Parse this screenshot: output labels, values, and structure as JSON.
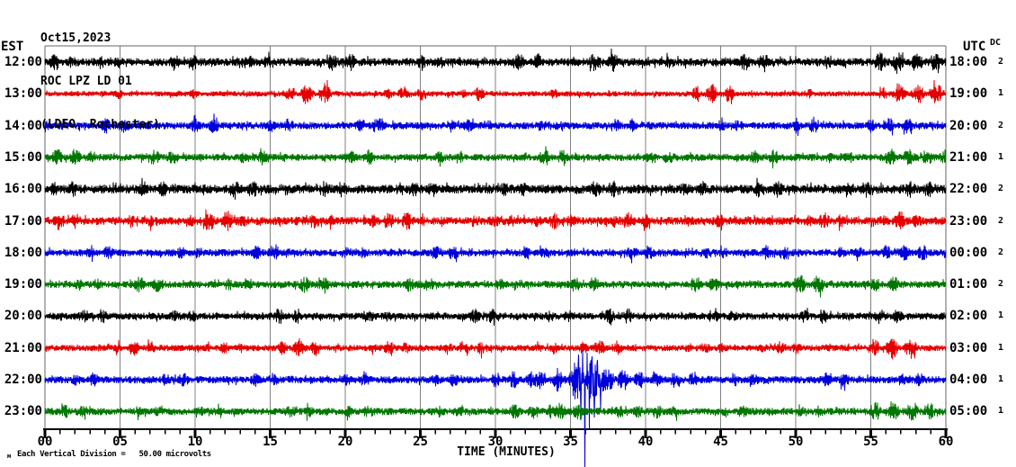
{
  "header": {
    "line1": "Oct15,2023",
    "line2": "ROC LPZ LD 01",
    "line3": "(LDEO, Rochester)"
  },
  "axes": {
    "left_tz": "EST",
    "right_tz": "UTC",
    "dc_header": "DC",
    "x_label": "TIME (MINUTES)",
    "x_ticks": [
      "00",
      "05",
      "10",
      "15",
      "20",
      "25",
      "30",
      "35",
      "40",
      "45",
      "50",
      "55",
      "60"
    ],
    "minutes_per_major_tick": 5,
    "minutes_per_minor_tick": 1
  },
  "footer": {
    "watermark": "м",
    "scale_note": "Each Vertical Division =   50.00 microvolts"
  },
  "colors": {
    "black": "#000000",
    "red": "#e60000",
    "blue": "#0000dd",
    "green": "#007700",
    "grid": "#808080",
    "frame": "#666666",
    "axis": "#000000"
  },
  "chart_data": {
    "type": "line",
    "title": "ROC LPZ LD 01 (LDEO, Rochester) helicorder, Oct15,2023",
    "xlabel": "TIME (MINUTES)",
    "x_range_minutes": [
      0,
      60
    ],
    "grid": true,
    "vertical_scale": "50.00 microvolts per division",
    "event_note": "Large-amplitude seismic event on 22:00 EST / 04:00 UTC trace near minute 36; spike extends below plot",
    "rows": [
      {
        "est": "12:00",
        "utc": "18:00",
        "dc": "2",
        "color": "black",
        "seed": 11,
        "base_amp": 4.5,
        "bursts": [
          [
            0,
            1.5,
            10
          ],
          [
            3,
            5,
            8
          ],
          [
            8,
            10,
            10
          ],
          [
            13,
            15,
            8
          ],
          [
            18.5,
            21,
            10
          ],
          [
            24.5,
            26.5,
            8
          ],
          [
            31,
            33,
            10
          ],
          [
            36,
            38.5,
            11
          ],
          [
            41,
            42.5,
            8
          ],
          [
            46,
            48,
            10
          ],
          [
            51.5,
            53,
            8
          ],
          [
            55,
            59.5,
            11
          ]
        ]
      },
      {
        "est": "13:00",
        "utc": "19:00",
        "dc": "1",
        "color": "red",
        "seed": 22,
        "base_amp": 3,
        "bursts": [
          [
            4,
            5,
            6
          ],
          [
            9,
            10,
            6
          ],
          [
            16.5,
            19,
            12
          ],
          [
            23,
            25,
            9
          ],
          [
            28,
            29.5,
            8
          ],
          [
            33,
            34,
            6
          ],
          [
            43.5,
            45.5,
            11
          ],
          [
            50,
            51,
            6
          ],
          [
            56,
            60,
            12
          ]
        ]
      },
      {
        "est": "14:00",
        "utc": "20:00",
        "dc": "2",
        "color": "blue",
        "seed": 33,
        "base_amp": 4,
        "bursts": [
          [
            0,
            1,
            7
          ],
          [
            4,
            6,
            9
          ],
          [
            10,
            12,
            9
          ],
          [
            15,
            17,
            8
          ],
          [
            21,
            23,
            9
          ],
          [
            27,
            29,
            8
          ],
          [
            33,
            35,
            7
          ],
          [
            38,
            40,
            9
          ],
          [
            45,
            47,
            7
          ],
          [
            50,
            52,
            9
          ],
          [
            55,
            58,
            9
          ]
        ]
      },
      {
        "est": "15:00",
        "utc": "21:00",
        "dc": "1",
        "color": "green",
        "seed": 44,
        "base_amp": 4,
        "bursts": [
          [
            0.5,
            3,
            10
          ],
          [
            7,
            9,
            9
          ],
          [
            13,
            15,
            8
          ],
          [
            20,
            22,
            9
          ],
          [
            26,
            28,
            7
          ],
          [
            33,
            35,
            10
          ],
          [
            40,
            42,
            8
          ],
          [
            47,
            49,
            9
          ],
          [
            52,
            54,
            7
          ],
          [
            56,
            60,
            10
          ]
        ]
      },
      {
        "est": "16:00",
        "utc": "22:00",
        "dc": "2",
        "color": "black",
        "seed": 55,
        "base_amp": 5,
        "bursts": [
          [
            0,
            2,
            9
          ],
          [
            6,
            8,
            9
          ],
          [
            12,
            14,
            10
          ],
          [
            18,
            20,
            10
          ],
          [
            24,
            26,
            9
          ],
          [
            30,
            32,
            8
          ],
          [
            36,
            38,
            10
          ],
          [
            42,
            44,
            8
          ],
          [
            47,
            49,
            10
          ],
          [
            53,
            55,
            8
          ],
          [
            57,
            59,
            10
          ]
        ]
      },
      {
        "est": "17:00",
        "utc": "23:00",
        "dc": "2",
        "color": "red",
        "seed": 66,
        "base_amp": 4.5,
        "bursts": [
          [
            0,
            2,
            11
          ],
          [
            5,
            7,
            8
          ],
          [
            10,
            13,
            12
          ],
          [
            17,
            19,
            9
          ],
          [
            22,
            25,
            11
          ],
          [
            29,
            31,
            8
          ],
          [
            33,
            35,
            10
          ],
          [
            38,
            40,
            10
          ],
          [
            44,
            46,
            8
          ],
          [
            51,
            53,
            10
          ],
          [
            56,
            58,
            11
          ]
        ]
      },
      {
        "est": "18:00",
        "utc": "00:00",
        "dc": "2",
        "color": "blue",
        "seed": 77,
        "base_amp": 4,
        "bursts": [
          [
            3,
            5,
            8
          ],
          [
            9,
            11,
            7
          ],
          [
            14,
            16,
            9
          ],
          [
            20,
            22,
            7
          ],
          [
            26,
            28,
            9
          ],
          [
            32,
            34,
            7
          ],
          [
            39,
            41,
            9
          ],
          [
            44,
            46,
            7
          ],
          [
            48,
            50,
            9
          ],
          [
            53,
            55,
            7
          ],
          [
            56,
            59,
            9
          ]
        ]
      },
      {
        "est": "19:00",
        "utc": "01:00",
        "dc": "2",
        "color": "green",
        "seed": 88,
        "base_amp": 4,
        "bursts": [
          [
            2,
            4,
            7
          ],
          [
            6,
            8,
            9
          ],
          [
            12,
            14,
            7
          ],
          [
            17,
            19,
            10
          ],
          [
            24,
            26,
            9
          ],
          [
            30,
            32,
            7
          ],
          [
            35,
            37,
            9
          ],
          [
            43,
            45,
            9
          ],
          [
            50,
            52,
            11
          ],
          [
            55,
            57,
            9
          ]
        ]
      },
      {
        "est": "20:00",
        "utc": "02:00",
        "dc": "1",
        "color": "black",
        "seed": 99,
        "base_amp": 4,
        "bursts": [
          [
            2,
            4,
            8
          ],
          [
            8,
            10,
            7
          ],
          [
            15,
            17,
            9
          ],
          [
            21,
            23,
            7
          ],
          [
            28,
            30,
            9
          ],
          [
            33,
            35,
            7
          ],
          [
            37,
            39,
            9
          ],
          [
            44,
            46,
            7
          ],
          [
            50,
            52,
            9
          ],
          [
            55,
            57,
            9
          ]
        ]
      },
      {
        "est": "21:00",
        "utc": "03:00",
        "dc": "1",
        "color": "red",
        "seed": 110,
        "base_amp": 3.5,
        "bursts": [
          [
            5,
            7,
            9
          ],
          [
            11,
            13,
            7
          ],
          [
            16,
            18,
            11
          ],
          [
            22,
            24,
            8
          ],
          [
            27,
            29,
            9
          ],
          [
            33,
            34,
            7
          ],
          [
            36,
            38,
            10
          ],
          [
            43,
            45,
            7
          ],
          [
            48,
            50,
            8
          ],
          [
            55.5,
            58,
            13
          ]
        ]
      },
      {
        "est": "22:00",
        "utc": "04:00",
        "dc": "1",
        "color": "blue",
        "seed": 121,
        "base_amp": 4,
        "bursts": [
          [
            2,
            4,
            8
          ],
          [
            8,
            10,
            8
          ],
          [
            14,
            16,
            8
          ],
          [
            20,
            22,
            7
          ],
          [
            26,
            28,
            8
          ],
          [
            30,
            33,
            10
          ],
          [
            33,
            35.3,
            14
          ],
          [
            35.3,
            37.3,
            26
          ],
          [
            37.3,
            39.5,
            13
          ],
          [
            39.5,
            44,
            9
          ],
          [
            46,
            48,
            8
          ],
          [
            52,
            54,
            9
          ],
          [
            57,
            59,
            8
          ]
        ],
        "spikes": [
          [
            35.55,
            -28
          ],
          [
            35.7,
            45
          ],
          [
            35.82,
            -32
          ],
          [
            35.95,
            103
          ],
          [
            36.1,
            -30
          ],
          [
            36.25,
            55
          ],
          [
            36.45,
            -26
          ],
          [
            36.6,
            42
          ],
          [
            36.8,
            -22
          ],
          [
            37.0,
            34
          ]
        ],
        "event": "Large local event ~35.5-37 min (04:35 UTC)"
      },
      {
        "est": "23:00",
        "utc": "05:00",
        "dc": "1",
        "color": "green",
        "seed": 132,
        "base_amp": 4,
        "bursts": [
          [
            1,
            3,
            8
          ],
          [
            6,
            8,
            7
          ],
          [
            10,
            12,
            9
          ],
          [
            16,
            18,
            7
          ],
          [
            20,
            22,
            8
          ],
          [
            26,
            28,
            7
          ],
          [
            31,
            34,
            9
          ],
          [
            34,
            36,
            10
          ],
          [
            38,
            42,
            8
          ],
          [
            45,
            47,
            7
          ],
          [
            50,
            52,
            7
          ],
          [
            55,
            59,
            11
          ]
        ]
      }
    ]
  }
}
